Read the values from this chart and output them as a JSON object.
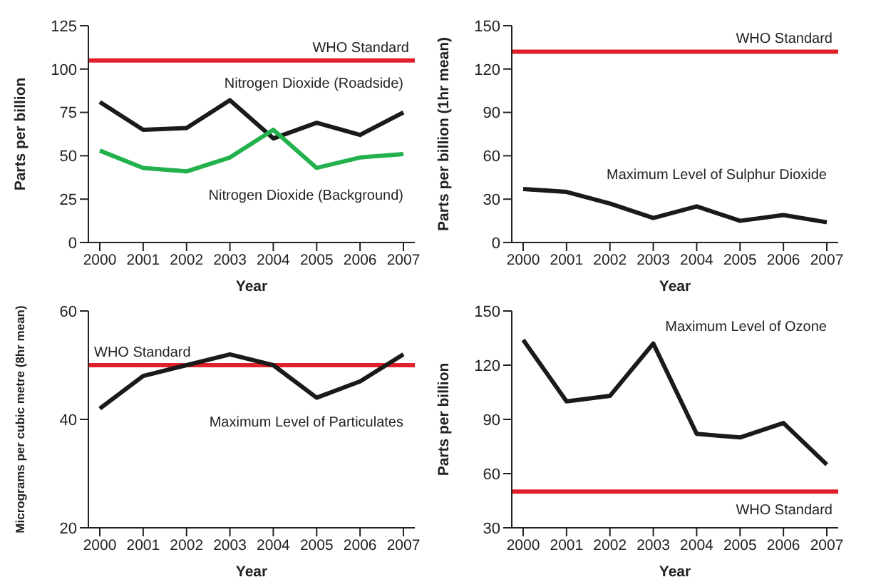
{
  "chart_data": [
    {
      "type": "line",
      "categories": [
        "2000",
        "2001",
        "2002",
        "2003",
        "2004",
        "2005",
        "2006",
        "2007"
      ],
      "xlabel": "Year",
      "ylabel": "Parts per billion",
      "ylim": [
        0,
        125
      ],
      "yticks": [
        0,
        25,
        50,
        75,
        100,
        125
      ],
      "grid": false,
      "legend": false,
      "marker": "none",
      "series": [
        {
          "name": "Nitrogen Dioxide (Roadside)",
          "color": "#1a1a1a",
          "values": [
            81,
            65,
            66,
            82,
            60,
            69,
            62,
            75
          ]
        },
        {
          "name": "Nitrogen Dioxide (Background)",
          "color": "#22b14c",
          "values": [
            53,
            43,
            41,
            49,
            65,
            43,
            49,
            51
          ]
        }
      ],
      "ref_lines": [
        {
          "axis": "y",
          "value": 105,
          "label": "WHO Standard",
          "color": "#e0202a"
        }
      ]
    },
    {
      "type": "line",
      "categories": [
        "2000",
        "2001",
        "2002",
        "2003",
        "2004",
        "2005",
        "2006",
        "2007"
      ],
      "xlabel": "Year",
      "ylabel": "Parts per billion (1hr mean)",
      "ylim": [
        0,
        150
      ],
      "yticks": [
        0,
        30,
        60,
        90,
        120,
        150
      ],
      "grid": false,
      "legend": false,
      "marker": "none",
      "series": [
        {
          "name": "Maximum Level of Sulphur Dioxide",
          "color": "#1a1a1a",
          "values": [
            37,
            35,
            27,
            17,
            25,
            15,
            19,
            14
          ]
        }
      ],
      "ref_lines": [
        {
          "axis": "y",
          "value": 132,
          "label": "WHO Standard",
          "color": "#e0202a"
        }
      ]
    },
    {
      "type": "line",
      "categories": [
        "2000",
        "2001",
        "2002",
        "2003",
        "2004",
        "2005",
        "2006",
        "2007"
      ],
      "xlabel": "Year",
      "ylabel": "Micrograms per cubic metre (8hr mean)",
      "ylim": [
        20,
        60
      ],
      "yticks": [
        20,
        40,
        60
      ],
      "grid": false,
      "legend": false,
      "marker": "none",
      "series": [
        {
          "name": "Maximum Level of Particulates",
          "color": "#1a1a1a",
          "values": [
            42,
            48,
            50,
            52,
            50,
            44,
            47,
            52
          ]
        }
      ],
      "ref_lines": [
        {
          "axis": "y",
          "value": 50,
          "label": "WHO Standard",
          "color": "#e0202a"
        }
      ]
    },
    {
      "type": "line",
      "categories": [
        "2000",
        "2001",
        "2002",
        "2003",
        "2004",
        "2005",
        "2006",
        "2007"
      ],
      "xlabel": "Year",
      "ylabel": "Parts per billion",
      "ylim": [
        30,
        150
      ],
      "yticks": [
        30,
        60,
        90,
        120,
        150
      ],
      "grid": false,
      "legend": false,
      "marker": "none",
      "series": [
        {
          "name": "Maximum Level of Ozone",
          "color": "#1a1a1a",
          "values": [
            134,
            100,
            103,
            132,
            82,
            80,
            88,
            65
          ]
        }
      ],
      "ref_lines": [
        {
          "axis": "y",
          "value": 50,
          "label": "WHO Standard",
          "color": "#e0202a"
        }
      ]
    }
  ]
}
